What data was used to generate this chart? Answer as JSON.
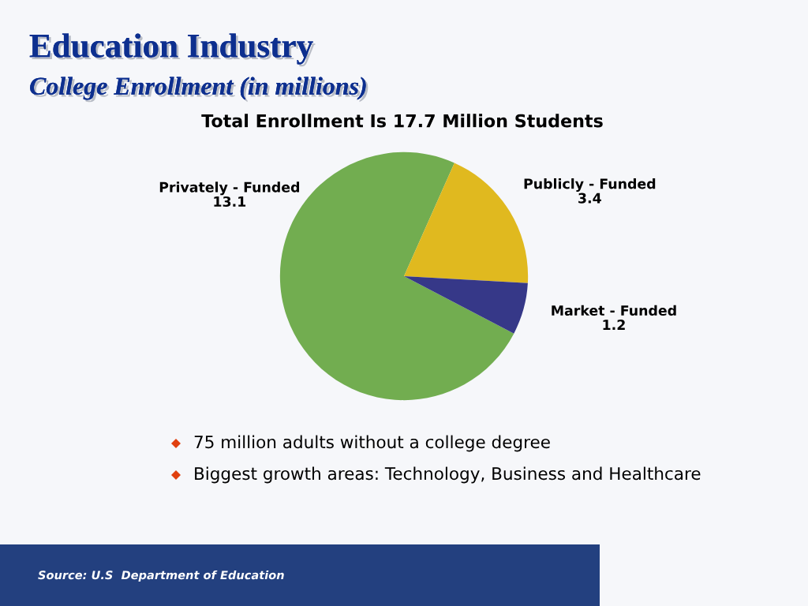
{
  "chart_data": {
    "type": "pie",
    "title": "Education Industry",
    "subtitle": "College Enrollment (in millions)",
    "categories": [
      "Privately - Funded",
      "Publicly - Funded",
      "Market - Funded"
    ],
    "values": [
      13.1,
      3.4,
      1.2
    ],
    "colors": [
      "#72ad50",
      "#e0b91f",
      "#363888"
    ],
    "data_labels": true,
    "annotations": [
      "Total Enrollment Is 17.7 Million Students",
      "75 million adults without a college degree",
      "Biggest growth areas: Technology, Business and Healthcare",
      "Source: U.S  Department of Education"
    ]
  }
}
